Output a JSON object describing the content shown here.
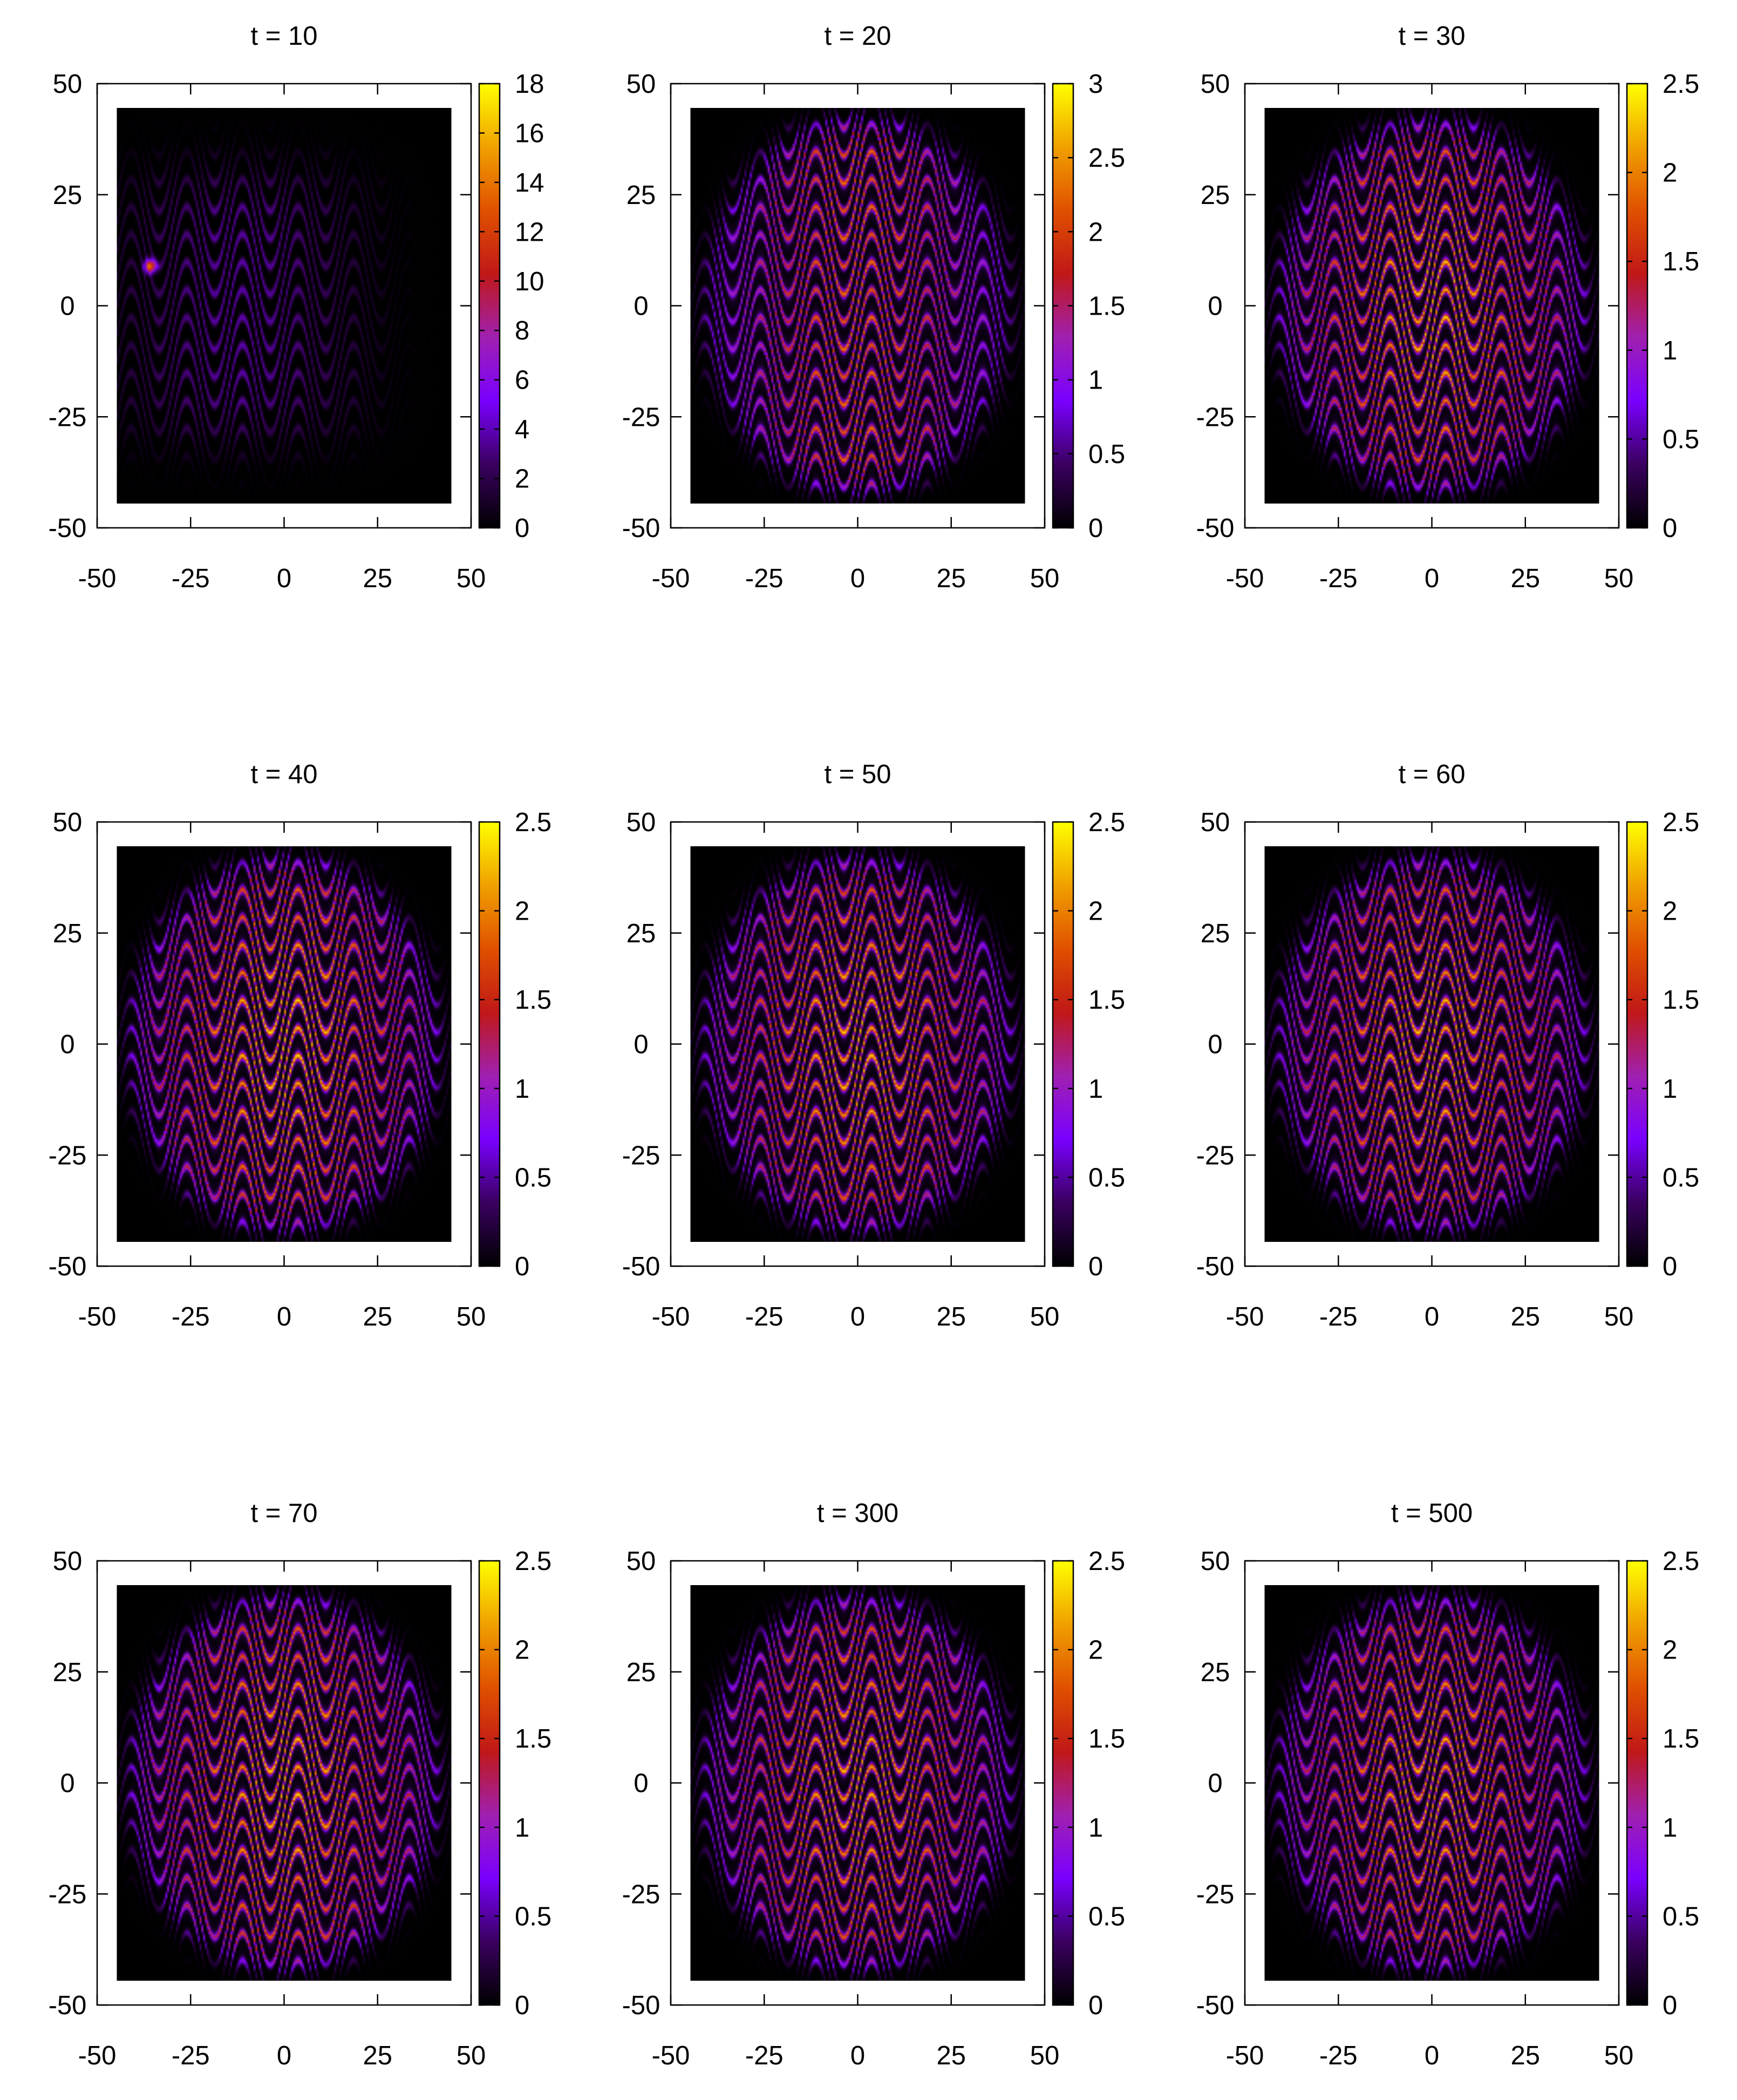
{
  "chart_data": [
    {
      "type": "heatmap",
      "title": "t = 10",
      "xlim": [
        -50,
        50
      ],
      "ylim": [
        -50,
        50
      ],
      "xticks": [
        "-50",
        "-25",
        "0",
        "25",
        "50"
      ],
      "yticks": [
        "50",
        "25",
        "0",
        "-25",
        "-50"
      ],
      "colorbar": {
        "min": 0,
        "max": 18,
        "ticks": [
          "0",
          "2",
          "4",
          "6",
          "8",
          "10",
          "12",
          "14",
          "16",
          "18"
        ]
      },
      "pattern": "early-sparse",
      "peak_relative": 0.22,
      "hotspot": [
        -36,
        9
      ]
    },
    {
      "type": "heatmap",
      "title": "t = 20",
      "xlim": [
        -50,
        50
      ],
      "ylim": [
        -50,
        50
      ],
      "xticks": [
        "-50",
        "-25",
        "0",
        "25",
        "50"
      ],
      "yticks": [
        "50",
        "25",
        "0",
        "-25",
        "-50"
      ],
      "colorbar": {
        "min": 0,
        "max": 3,
        "ticks": [
          "0",
          "0.5",
          "1",
          "1.5",
          "2",
          "2.5",
          "3"
        ]
      },
      "pattern": "developing",
      "peak_relative": 0.75
    },
    {
      "type": "heatmap",
      "title": "t = 30",
      "xlim": [
        -50,
        50
      ],
      "ylim": [
        -50,
        50
      ],
      "xticks": [
        "-50",
        "-25",
        "0",
        "25",
        "50"
      ],
      "yticks": [
        "50",
        "25",
        "0",
        "-25",
        "-50"
      ],
      "colorbar": {
        "min": 0,
        "max": 2.5,
        "ticks": [
          "0",
          "0.5",
          "1",
          "1.5",
          "2",
          "2.5"
        ]
      },
      "pattern": "saturated",
      "peak_relative": 0.9
    },
    {
      "type": "heatmap",
      "title": "t = 40",
      "xlim": [
        -50,
        50
      ],
      "ylim": [
        -50,
        50
      ],
      "xticks": [
        "-50",
        "-25",
        "0",
        "25",
        "50"
      ],
      "yticks": [
        "50",
        "25",
        "0",
        "-25",
        "-50"
      ],
      "colorbar": {
        "min": 0,
        "max": 2.5,
        "ticks": [
          "0",
          "0.5",
          "1",
          "1.5",
          "2",
          "2.5"
        ]
      },
      "pattern": "saturated",
      "peak_relative": 0.92
    },
    {
      "type": "heatmap",
      "title": "t = 50",
      "xlim": [
        -50,
        50
      ],
      "ylim": [
        -50,
        50
      ],
      "xticks": [
        "-50",
        "-25",
        "0",
        "25",
        "50"
      ],
      "yticks": [
        "50",
        "25",
        "0",
        "-25",
        "-50"
      ],
      "colorbar": {
        "min": 0,
        "max": 2.5,
        "ticks": [
          "0",
          "0.5",
          "1",
          "1.5",
          "2",
          "2.5"
        ]
      },
      "pattern": "saturated",
      "peak_relative": 0.9
    },
    {
      "type": "heatmap",
      "title": "t = 60",
      "xlim": [
        -50,
        50
      ],
      "ylim": [
        -50,
        50
      ],
      "xticks": [
        "-50",
        "-25",
        "0",
        "25",
        "50"
      ],
      "yticks": [
        "50",
        "25",
        "0",
        "-25",
        "-50"
      ],
      "colorbar": {
        "min": 0,
        "max": 2.5,
        "ticks": [
          "0",
          "0.5",
          "1",
          "1.5",
          "2",
          "2.5"
        ]
      },
      "pattern": "saturated",
      "peak_relative": 0.9
    },
    {
      "type": "heatmap",
      "title": "t = 70",
      "xlim": [
        -50,
        50
      ],
      "ylim": [
        -50,
        50
      ],
      "xticks": [
        "-50",
        "-25",
        "0",
        "25",
        "50"
      ],
      "yticks": [
        "50",
        "25",
        "0",
        "-25",
        "-50"
      ],
      "colorbar": {
        "min": 0,
        "max": 2.5,
        "ticks": [
          "0",
          "0.5",
          "1",
          "1.5",
          "2",
          "2.5"
        ]
      },
      "pattern": "saturated",
      "peak_relative": 0.9
    },
    {
      "type": "heatmap",
      "title": "t = 300",
      "xlim": [
        -50,
        50
      ],
      "ylim": [
        -50,
        50
      ],
      "xticks": [
        "-50",
        "-25",
        "0",
        "25",
        "50"
      ],
      "yticks": [
        "50",
        "25",
        "0",
        "-25",
        "-50"
      ],
      "colorbar": {
        "min": 0,
        "max": 2.5,
        "ticks": [
          "0",
          "0.5",
          "1",
          "1.5",
          "2",
          "2.5"
        ]
      },
      "pattern": "saturated",
      "peak_relative": 0.88
    },
    {
      "type": "heatmap",
      "title": "t = 500",
      "xlim": [
        -50,
        50
      ],
      "ylim": [
        -50,
        50
      ],
      "xticks": [
        "-50",
        "-25",
        "0",
        "25",
        "50"
      ],
      "yticks": [
        "50",
        "25",
        "0",
        "-25",
        "-50"
      ],
      "colorbar": {
        "min": 0,
        "max": 2.5,
        "ticks": [
          "0",
          "0.5",
          "1",
          "1.5",
          "2",
          "2.5"
        ]
      },
      "pattern": "saturated",
      "peak_relative": 0.88
    }
  ],
  "colormap": {
    "name": "gnuplot-pm3d",
    "stops": [
      "#000000",
      "#3a0060",
      "#7a00ff",
      "#a020b0",
      "#c01818",
      "#e05000",
      "#f0a000",
      "#ffff00"
    ]
  },
  "background_color": "#ffffff",
  "axis_color": "#000000"
}
